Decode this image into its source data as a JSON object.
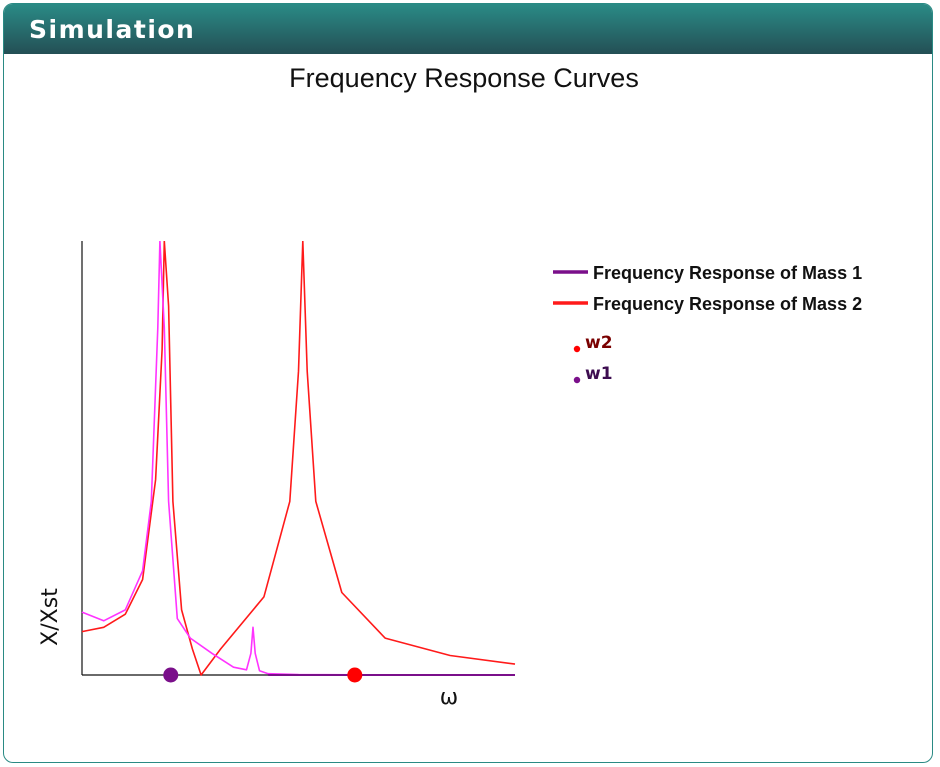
{
  "panel": {
    "title": "Simulation"
  },
  "chart_data": {
    "type": "line",
    "title": "Frequency Response Curves",
    "xlabel": "ω",
    "ylabel": "X/Xst",
    "xlim": [
      0,
      10
    ],
    "ylim": [
      0,
      10
    ],
    "grid": false,
    "ticks": "none",
    "legend_position": "right",
    "legend": [
      {
        "label": "Frequency Response of Mass 1",
        "color": "#7a0f8a"
      },
      {
        "label": "Frequency Response of Mass 2",
        "color": "#ff1a1a"
      }
    ],
    "series": [
      {
        "color": "#ff33ff",
        "x": [
          0,
          0.5,
          1.0,
          1.4,
          1.6,
          1.75,
          1.8,
          1.9,
          2.0,
          2.2,
          2.5,
          3.0,
          3.5,
          3.8,
          3.9,
          3.95,
          4.0,
          4.1,
          4.3,
          5.0,
          7.0,
          10.0
        ],
        "y": [
          1.45,
          1.25,
          1.5,
          2.4,
          4.0,
          8.0,
          10.0,
          8.0,
          4.0,
          1.3,
          0.85,
          0.5,
          0.18,
          0.12,
          0.5,
          1.1,
          0.5,
          0.1,
          0.03,
          0.01,
          0.0,
          0.0
        ]
      },
      {
        "color": "#ff1a1a",
        "x": [
          0,
          0.5,
          1.0,
          1.4,
          1.7,
          1.85,
          1.9,
          2.0,
          2.1,
          2.3,
          2.55,
          2.75,
          3.2,
          4.2,
          4.8,
          5.0,
          5.1,
          5.2,
          5.4,
          6.0,
          7.0,
          8.5,
          10.0
        ],
        "y": [
          1.0,
          1.1,
          1.4,
          2.2,
          4.5,
          7.5,
          10.0,
          8.5,
          4.0,
          1.5,
          0.6,
          0.0,
          0.6,
          1.8,
          4.0,
          7.0,
          10.0,
          7.0,
          4.0,
          1.9,
          0.85,
          0.45,
          0.25
        ]
      }
    ],
    "markers": [
      {
        "label": "w1",
        "x": 2.05,
        "y": 0,
        "color": "#7a0f8a",
        "label_color": "#3d0d50"
      },
      {
        "label": "w2",
        "x": 6.3,
        "y": 0,
        "color": "#ff0000",
        "label_color": "#7a0000"
      }
    ]
  }
}
